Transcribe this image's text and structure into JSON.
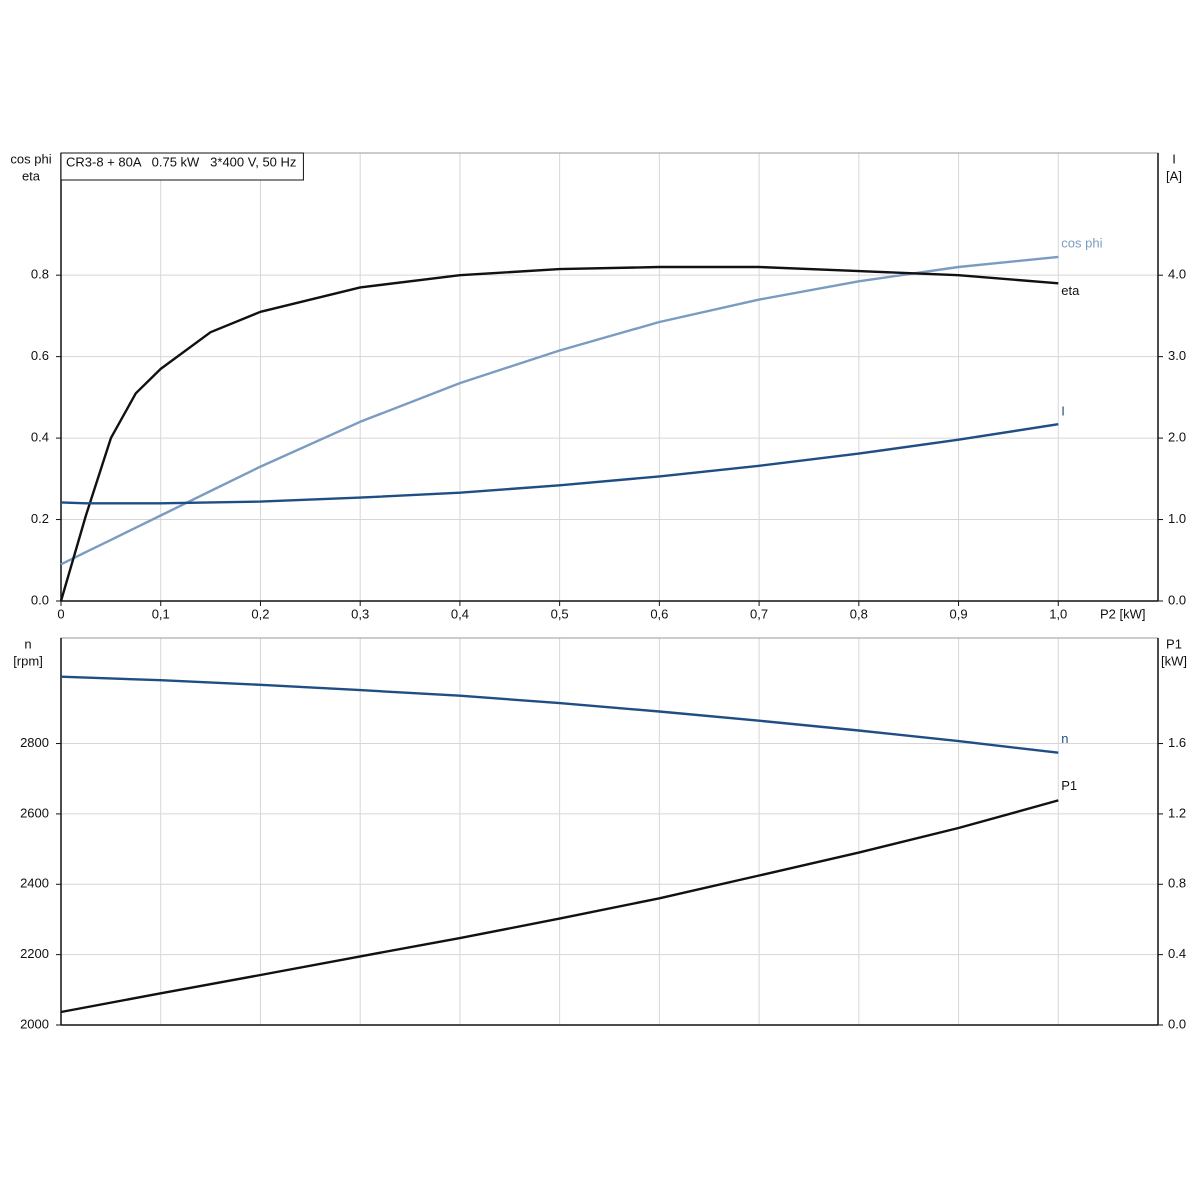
{
  "chart_data": [
    {
      "type": "line",
      "annotation": "CR3-8 + 80A   0.75 kW   3*400 V, 50 Hz",
      "ylabel": [
        "cos phi",
        "eta"
      ],
      "y2label": [
        "I",
        "[A]"
      ],
      "xlabel": "P2 [kW]",
      "x": [
        0,
        0.025,
        0.05,
        0.075,
        0.1,
        0.15,
        0.2,
        0.3,
        0.4,
        0.5,
        0.6,
        0.7,
        0.8,
        0.9,
        1.0
      ],
      "xlim": [
        0,
        1.1
      ],
      "xticks": [
        0,
        {
          "value": 0.1,
          "label": "0,1"
        },
        {
          "value": 0.2,
          "label": "0,2"
        },
        {
          "value": 0.3,
          "label": "0,3"
        },
        {
          "value": 0.4,
          "label": "0,4"
        },
        {
          "value": 0.5,
          "label": "0,5"
        },
        {
          "value": 0.6,
          "label": "0,6"
        },
        {
          "value": 0.7,
          "label": "0,7"
        },
        {
          "value": 0.8,
          "label": "0,8"
        },
        {
          "value": 0.9,
          "label": "0,9"
        },
        {
          "value": 1.0,
          "label": "1,0"
        }
      ],
      "ylim": [
        0,
        1.1
      ],
      "yticks": [
        {
          "value": 0,
          "label": "0.0"
        },
        0.2,
        0.4,
        0.6,
        0.8
      ],
      "y2lim": [
        0,
        5.5
      ],
      "y2ticks": [
        {
          "value": 0,
          "label": "0.0"
        },
        {
          "value": 1,
          "label": "1.0"
        },
        {
          "value": 2,
          "label": "2.0"
        },
        {
          "value": 3,
          "label": "3.0"
        },
        {
          "value": 4,
          "label": "4.0"
        }
      ],
      "grid": true,
      "series": [
        {
          "name": "cos phi",
          "color": "#7a9cc0",
          "values": [
            0.09,
            0.12,
            0.15,
            0.18,
            0.21,
            0.27,
            0.33,
            0.44,
            0.535,
            0.615,
            0.685,
            0.74,
            0.785,
            0.82,
            0.845
          ]
        },
        {
          "name": "eta",
          "color": "#111111",
          "values": [
            0,
            0.21,
            0.4,
            0.51,
            0.57,
            0.66,
            0.71,
            0.77,
            0.8,
            0.815,
            0.82,
            0.82,
            0.81,
            0.8,
            0.78
          ]
        },
        {
          "name": "I",
          "color": "#1f4e85",
          "axis": "y2",
          "values": [
            1.21,
            1.2,
            1.2,
            1.2,
            1.2,
            1.21,
            1.22,
            1.27,
            1.33,
            1.42,
            1.53,
            1.66,
            1.81,
            1.98,
            2.17
          ]
        }
      ]
    },
    {
      "type": "line",
      "ylabel": [
        "n",
        "[rpm]"
      ],
      "y2label": [
        "P1",
        "[kW]"
      ],
      "x": [
        0,
        0.1,
        0.2,
        0.3,
        0.4,
        0.5,
        0.6,
        0.7,
        0.8,
        0.9,
        1.0
      ],
      "xlim": [
        0,
        1.1
      ],
      "ylim": [
        2000,
        3100
      ],
      "yticks": [
        2000,
        2200,
        2400,
        2600,
        2800
      ],
      "y2lim": [
        0,
        2.2
      ],
      "y2ticks": [
        {
          "value": 0,
          "label": "0.0"
        },
        0.4,
        0.8,
        1.2,
        1.6
      ],
      "grid": true,
      "series": [
        {
          "name": "n",
          "color": "#1f4e85",
          "values": [
            2990,
            2980,
            2967,
            2952,
            2936,
            2915,
            2891,
            2865,
            2837,
            2807,
            2774
          ]
        },
        {
          "name": "P1",
          "color": "#111111",
          "axis": "y2",
          "values": [
            0.074,
            0.18,
            0.284,
            0.39,
            0.494,
            0.605,
            0.72,
            0.85,
            0.98,
            1.12,
            1.277
          ]
        }
      ]
    }
  ]
}
